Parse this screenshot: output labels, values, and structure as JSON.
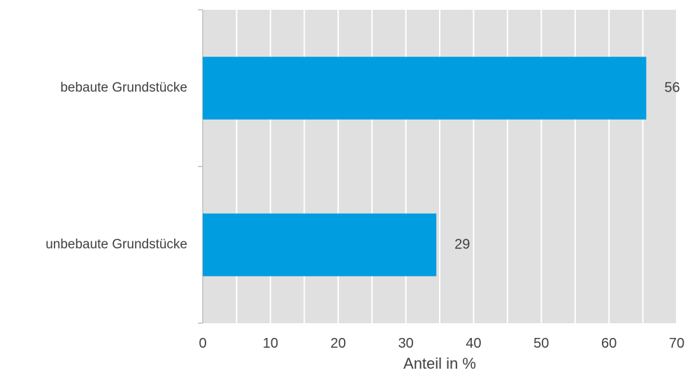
{
  "chart_data": {
    "type": "bar",
    "orientation": "horizontal",
    "categories": [
      "bebaute Grundstücke",
      "unbebaute Grundstücke"
    ],
    "values": [
      65.5,
      34.5
    ],
    "data_labels": [
      "56",
      "29"
    ],
    "xlabel": "Anteil in %",
    "ylabel": "",
    "xlim": [
      0,
      70
    ],
    "xticks": [
      "0",
      "10",
      "20",
      "30",
      "40",
      "50",
      "60",
      "70"
    ],
    "minor_grid_step": 5,
    "grid": true,
    "legend": "none",
    "colors": {
      "bar": "#009de0",
      "plot_background": "#e0e0e0",
      "gridline": "#ffffff",
      "text": "#404040",
      "axis": "#bfbfbf"
    }
  }
}
